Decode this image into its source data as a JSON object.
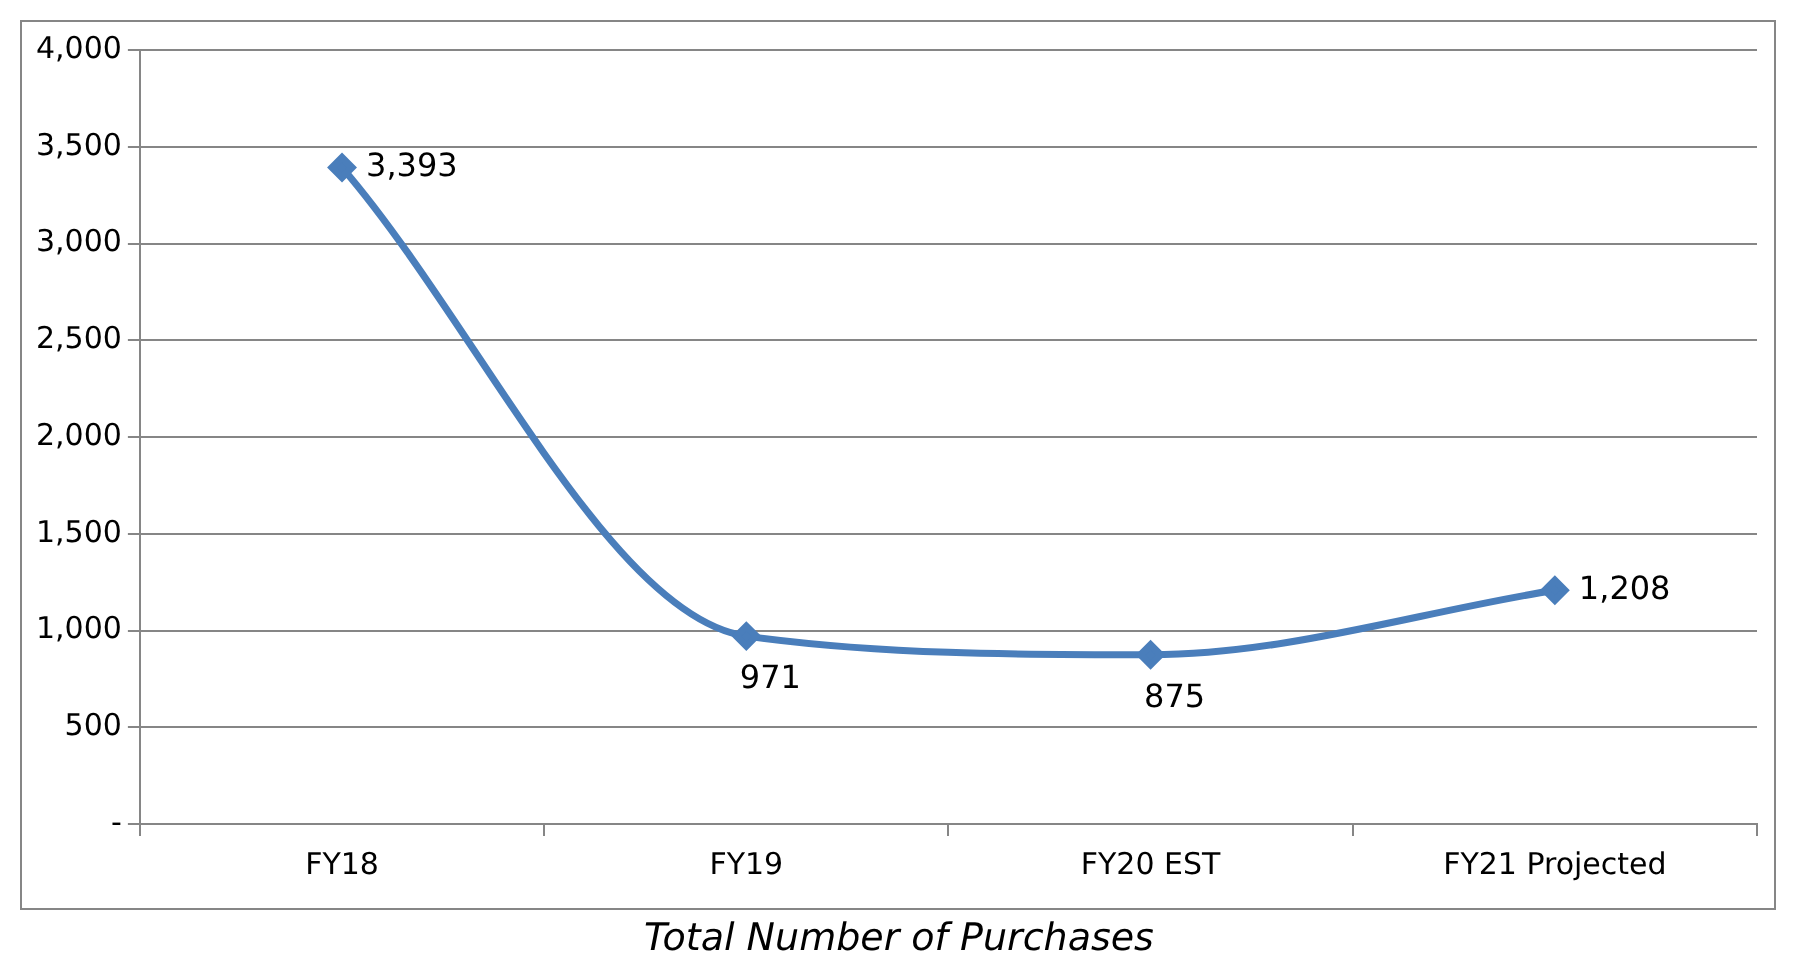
{
  "chart_data": {
    "type": "line",
    "annotations": [
      "Total Number of Purchases"
    ],
    "categories": [
      "FY18",
      "FY19",
      "FY20 EST",
      "FY21 Projected"
    ],
    "series": [
      {
        "color": "#4a7ebb",
        "values": [
          3393,
          971,
          875,
          1208
        ],
        "value_labels": [
          "3,393",
          "971",
          "875",
          "1,208"
        ]
      }
    ],
    "ylim": [
      0,
      4000
    ],
    "yticks": [
      {
        "value": 0,
        "label": "-"
      },
      {
        "value": 500,
        "label": "500"
      },
      {
        "value": 1000,
        "label": "1,000"
      },
      {
        "value": 1500,
        "label": "1,500"
      },
      {
        "value": 2000,
        "label": "2,000"
      },
      {
        "value": 2500,
        "label": "2,500"
      },
      {
        "value": 3000,
        "label": "3,000"
      },
      {
        "value": 3500,
        "label": "3,500"
      },
      {
        "value": 4000,
        "label": "4,000"
      }
    ],
    "grid": "y",
    "legend": false,
    "marker": "diamond",
    "line_style": "solid"
  }
}
